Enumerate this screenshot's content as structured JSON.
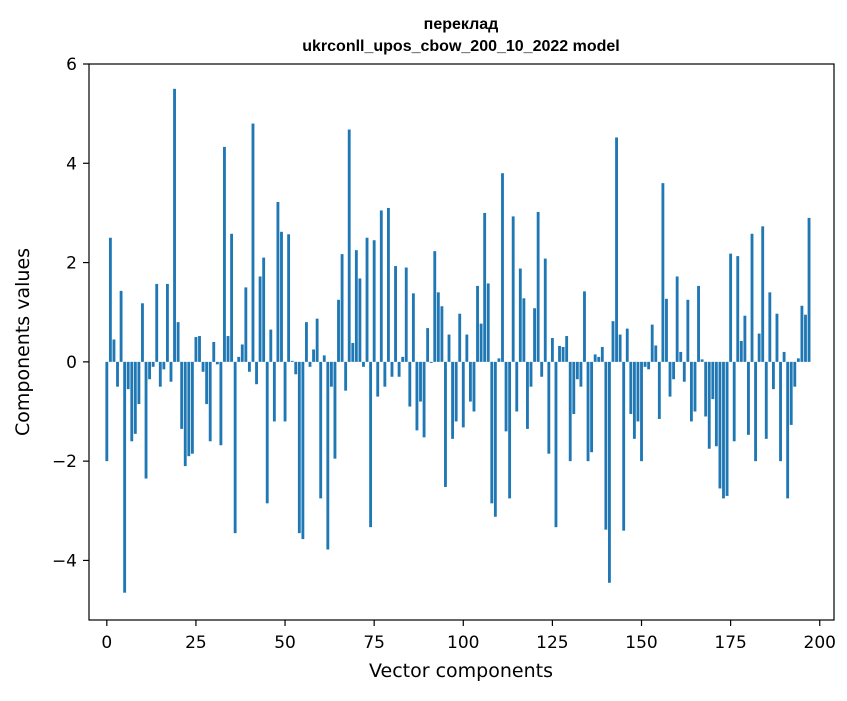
{
  "chart_data": {
    "type": "bar",
    "title_line1": "переклад",
    "title_line2": "ukrconll_upos_cbow_200_10_2022 model",
    "xlabel": "Vector components",
    "ylabel": "Components values",
    "xlim": [
      -5,
      204
    ],
    "ylim": [
      -5.2,
      6
    ],
    "xticks": [
      0,
      25,
      50,
      75,
      100,
      125,
      150,
      175,
      200
    ],
    "xtick_labels": [
      "0",
      "25",
      "50",
      "75",
      "100",
      "125",
      "150",
      "175",
      "200"
    ],
    "yticks": [
      -4,
      -2,
      0,
      2,
      4,
      6
    ],
    "ytick_labels": [
      "−4",
      "−2",
      "0",
      "2",
      "4",
      "6"
    ],
    "bar_color": "#1f77b4",
    "values": [
      -2.0,
      2.5,
      0.45,
      -0.5,
      1.43,
      -4.65,
      -0.55,
      -1.6,
      -1.45,
      -0.85,
      1.18,
      -2.35,
      -0.35,
      -0.1,
      1.57,
      -0.5,
      -0.15,
      1.57,
      -0.4,
      5.5,
      0.8,
      -1.35,
      -2.1,
      -1.9,
      -1.85,
      0.5,
      0.52,
      -0.2,
      -0.85,
      -1.6,
      0.4,
      -0.05,
      -1.68,
      4.33,
      0.52,
      2.58,
      -3.45,
      0.1,
      0.35,
      1.5,
      -0.2,
      4.8,
      -0.45,
      1.72,
      2.1,
      -2.85,
      0.65,
      -1.2,
      3.22,
      2.62,
      -1.2,
      2.57,
      0.02,
      -0.25,
      -3.45,
      -3.57,
      0.8,
      -0.1,
      0.25,
      0.87,
      -2.75,
      0.13,
      -3.78,
      -0.5,
      -1.95,
      1.25,
      2.17,
      -0.58,
      4.68,
      0.38,
      2.25,
      1.68,
      -0.1,
      2.5,
      -3.33,
      2.45,
      -0.7,
      3.05,
      -0.5,
      3.1,
      -0.3,
      1.93,
      -0.3,
      0.1,
      1.9,
      -0.9,
      1.38,
      -1.38,
      -0.8,
      -1.52,
      0.68,
      -0.02,
      2.23,
      1.4,
      1.12,
      -2.52,
      0.55,
      -1.55,
      -1.2,
      0.97,
      -1.32,
      0.55,
      -0.8,
      -1.0,
      1.53,
      0.77,
      3.0,
      1.58,
      -2.85,
      -3.12,
      0.07,
      3.8,
      -1.4,
      -2.75,
      2.93,
      -1.0,
      1.88,
      1.28,
      -1.35,
      -0.5,
      1.08,
      3.02,
      -0.3,
      2.08,
      -1.85,
      0.48,
      -3.33,
      0.32,
      0.3,
      0.52,
      -2.0,
      -1.05,
      -0.35,
      -0.5,
      1.42,
      -2.0,
      -1.82,
      0.15,
      0.1,
      0.3,
      -3.38,
      -4.45,
      0.82,
      4.52,
      0.55,
      -3.4,
      0.67,
      -1.05,
      -1.55,
      -1.2,
      -2.0,
      -0.1,
      -0.15,
      0.75,
      0.33,
      -1.15,
      3.6,
      1.27,
      -0.7,
      -0.35,
      1.72,
      0.2,
      -0.4,
      1.25,
      -1.2,
      -1.0,
      1.53,
      0.05,
      -1.1,
      -1.75,
      -0.75,
      -1.7,
      -2.55,
      -2.75,
      -2.7,
      2.18,
      -1.6,
      2.13,
      0.42,
      0.93,
      -1.47,
      2.58,
      -2.0,
      0.57,
      2.73,
      -1.55,
      1.4,
      -0.55,
      0.97,
      -2.0,
      0.2,
      -2.75,
      -1.27,
      -0.5,
      0.07,
      1.13,
      0.95,
      2.9
    ]
  }
}
